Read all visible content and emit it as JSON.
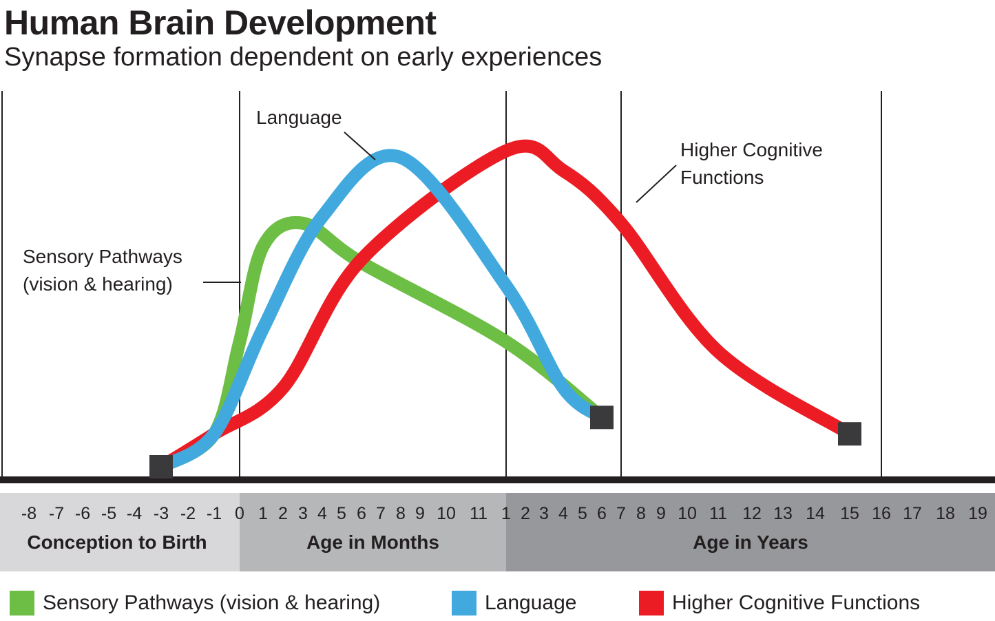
{
  "chart_data": {
    "type": "line",
    "title": "Human Brain Development",
    "subtitle": "Synapse formation dependent on early experiences",
    "x_ticks": {
      "conception_to_birth": [
        "-8",
        "-7",
        "-6",
        "-5",
        "-4",
        "-3",
        "-2",
        "-1",
        "0"
      ],
      "months": [
        "1",
        "2",
        "3",
        "4",
        "5",
        "6",
        "7",
        "8",
        "9",
        "10",
        "11"
      ],
      "years": [
        "1",
        "2",
        "3",
        "4",
        "5",
        "6",
        "7",
        "8",
        "9",
        "10",
        "11",
        "12",
        "13",
        "14",
        "15",
        "16",
        "17",
        "18",
        "19"
      ]
    },
    "x_bands": [
      {
        "label": "Conception to Birth",
        "color": "#d8d8da",
        "from": "-8 months (prenatal)",
        "to": "0 (birth)"
      },
      {
        "label": "Age in Months",
        "color": "#b6b7b9",
        "from": "0 (birth)",
        "to": "1 year"
      },
      {
        "label": "Age in Years",
        "color": "#97989b",
        "from": "1 year",
        "to": "19 years"
      }
    ],
    "gridlines_at": [
      "0 (birth)",
      "1 year",
      "7 years",
      "16 years"
    ],
    "y_axis": {
      "label": "",
      "units": "relative synapse formation",
      "range": [
        0,
        1
      ]
    },
    "series": [
      {
        "name": "Sensory Pathways (vision & hearing)",
        "color": "#6cbe45",
        "points": [
          {
            "x": "-3 months",
            "y": 0.0
          },
          {
            "x": "-1 months",
            "y": 0.1
          },
          {
            "x": "0",
            "y": 0.38
          },
          {
            "x": "1 month",
            "y": 0.67
          },
          {
            "x": "3 months",
            "y": 0.74
          },
          {
            "x": "6 months",
            "y": 0.62
          },
          {
            "x": "1 year",
            "y": 0.38
          },
          {
            "x": "6 years",
            "y": 0.15
          }
        ],
        "end_marker": "6 years"
      },
      {
        "name": "Language",
        "color": "#41a9dd",
        "points": [
          {
            "x": "-3 months",
            "y": 0.0
          },
          {
            "x": "-1 months",
            "y": 0.1
          },
          {
            "x": "1 month",
            "y": 0.42
          },
          {
            "x": "4 months",
            "y": 0.76
          },
          {
            "x": "8 months",
            "y": 0.94
          },
          {
            "x": "1 year",
            "y": 0.55
          },
          {
            "x": "4 years",
            "y": 0.24
          },
          {
            "x": "6 years",
            "y": 0.15
          }
        ],
        "end_marker": "6 years"
      },
      {
        "name": "Higher Cognitive Functions",
        "color": "#ec1c24",
        "points": [
          {
            "x": "-3 months",
            "y": 0.0
          },
          {
            "x": "-1 months",
            "y": 0.1
          },
          {
            "x": "2 months",
            "y": 0.24
          },
          {
            "x": "6 months",
            "y": 0.63
          },
          {
            "x": "1 year",
            "y": 0.96
          },
          {
            "x": "4 years",
            "y": 0.9
          },
          {
            "x": "7 years",
            "y": 0.74
          },
          {
            "x": "11 years",
            "y": 0.35
          },
          {
            "x": "15 years",
            "y": 0.1
          }
        ],
        "end_marker": "15 years"
      }
    ],
    "annotations": [
      {
        "text": "Language",
        "series": "Language"
      },
      {
        "text": [
          "Higher Cognitive",
          "Functions"
        ],
        "series": "Higher Cognitive Functions"
      },
      {
        "text": [
          "Sensory Pathways",
          "(vision & hearing)"
        ],
        "series": "Sensory Pathways (vision & hearing)"
      }
    ],
    "legend": {
      "placement": "bottom",
      "items": [
        {
          "label": "Sensory Pathways (vision & hearing)",
          "color": "#6cbe45"
        },
        {
          "label": "Language",
          "color": "#41a9dd"
        },
        {
          "label": "Higher Cognitive Functions",
          "color": "#ec1c24"
        }
      ]
    },
    "start_marker": "-3 months",
    "grid": true
  }
}
